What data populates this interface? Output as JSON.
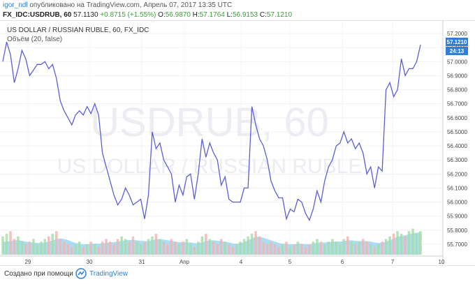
{
  "header": {
    "user": "igor_ndl",
    "published": "опубликовано на TradingView.com, Апрель 07, 2017 13:35 UTC",
    "symbol": "FX_IDC:USDRUB, 60",
    "last": "57.1130",
    "change": "+0.8715 (+1.55%)",
    "o_label": "O:",
    "o": "56.9870",
    "h_label": "H:",
    "h": "57.1764",
    "l_label": "L:",
    "l": "56.9153",
    "c_label": "C:",
    "c": "57.1210"
  },
  "legend": {
    "title": "US DOLLAR / RUSSIAN RUBLE, 60, FX_IDC",
    "volume": "Объём (20, false)"
  },
  "watermark": {
    "line1": "USDRUB, 60",
    "line2": "US DOLLAR / RUSSIAN RUBLE"
  },
  "price_tag": {
    "value": "57.1210",
    "timer": "24:13"
  },
  "footer": {
    "created": "Создано при помощи",
    "brand": "TradingView"
  },
  "colors": {
    "line": "#5b5fd6",
    "accent": "#2f7fd6",
    "up": "#3a9e3a",
    "vol_area": "#8fd3ef",
    "vol_green": "#a6dca6",
    "vol_red": "#f2b3b3"
  },
  "chart_data": {
    "type": "line",
    "x_ticks": [
      "29",
      "30",
      "31",
      "Апр",
      "4",
      "5",
      "6",
      "7",
      "10"
    ],
    "y_ticks": [
      "57.2000",
      "57.1000",
      "57.0000",
      "56.9000",
      "56.8000",
      "56.7000",
      "56.6000",
      "56.5000",
      "56.4000",
      "56.3000",
      "56.2000",
      "56.1000",
      "56.0000",
      "55.9000",
      "55.8000",
      "55.7000"
    ],
    "ylim": [
      55.65,
      57.25
    ],
    "grid": true,
    "series": [
      {
        "values": [
          57.0,
          57.14,
          57.05,
          56.85,
          56.95,
          57.08,
          57.02,
          56.9,
          56.94,
          56.98,
          56.98,
          57.0,
          56.95,
          56.98,
          56.88,
          56.72,
          56.65,
          56.6,
          56.55,
          56.62,
          56.65,
          56.62,
          56.68,
          56.63,
          56.7,
          56.62,
          56.35,
          56.25,
          56.15,
          56.05,
          55.98,
          56.02,
          56.1,
          56.05,
          55.98,
          56.0,
          56.02,
          55.88,
          56.05,
          56.5,
          56.38,
          56.42,
          56.3,
          56.25,
          56.2,
          56.0,
          56.12,
          56.05,
          56.18,
          56.2,
          56.02,
          56.2,
          56.45,
          56.32,
          56.42,
          56.35,
          56.3,
          56.12,
          56.18,
          56.02,
          56.0,
          56.0,
          56.0,
          56.1,
          56.1,
          56.68,
          56.55,
          56.45,
          56.4,
          56.3,
          56.15,
          56.08,
          56.03,
          56.03,
          55.88,
          55.95,
          55.93,
          56.02,
          56.0,
          55.92,
          55.87,
          55.95,
          56.08,
          56.0,
          56.15,
          56.25,
          56.3,
          56.4,
          56.42,
          56.5,
          56.42,
          56.45,
          56.38,
          56.42,
          56.35,
          56.2,
          56.25,
          56.1,
          56.25,
          56.22,
          56.8,
          56.85,
          56.75,
          56.8,
          57.02,
          56.9,
          56.95,
          56.95,
          57.0,
          57.12
        ]
      }
    ],
    "volume": {
      "series_name": "Объём (20, false)",
      "ylim": [
        0,
        1.6
      ],
      "values": [
        0.7,
        0.8,
        0.9,
        0.6,
        0.7,
        0.5,
        0.4,
        0.5,
        0.6,
        0.4,
        0.5,
        0.6,
        0.7,
        0.8,
        0.9,
        0.6,
        0.5,
        0.4,
        0.3,
        0.4,
        0.5,
        0.3,
        0.4,
        0.5,
        0.4,
        0.3,
        0.5,
        0.6,
        0.5,
        0.4,
        0.6,
        0.7,
        0.6,
        0.5,
        0.7,
        0.5,
        0.4,
        0.5,
        0.6,
        0.7,
        0.8,
        0.6,
        0.5,
        0.4,
        0.6,
        0.5,
        0.4,
        0.5,
        0.6,
        0.4,
        0.3,
        0.5,
        0.7,
        0.8,
        0.6,
        0.5,
        0.4,
        0.6,
        0.5,
        0.4,
        0.3,
        0.4,
        0.5,
        0.6,
        0.7,
        0.8,
        0.9,
        0.7,
        0.5,
        0.4,
        0.5,
        0.4,
        0.3,
        0.4,
        0.5,
        0.3,
        0.4,
        0.5,
        0.4,
        0.3,
        0.4,
        0.5,
        0.6,
        0.5,
        0.4,
        0.5,
        0.6,
        0.5,
        0.4,
        0.6,
        0.7,
        0.5,
        0.4,
        0.5,
        0.6,
        0.5,
        0.4,
        0.3,
        0.4,
        0.5,
        0.6,
        0.7,
        0.8,
        0.9,
        0.8,
        0.7,
        0.9,
        1.0,
        0.8,
        0.9
      ],
      "avg": [
        0.5,
        0.5,
        0.52,
        0.55,
        0.55,
        0.53,
        0.5,
        0.48,
        0.46,
        0.45,
        0.45,
        0.46,
        0.5,
        0.55,
        0.6,
        0.62,
        0.6,
        0.56,
        0.5,
        0.45,
        0.42,
        0.4,
        0.4,
        0.42,
        0.43,
        0.42,
        0.43,
        0.45,
        0.47,
        0.48,
        0.5,
        0.53,
        0.55,
        0.56,
        0.56,
        0.55,
        0.53,
        0.52,
        0.52,
        0.55,
        0.6,
        0.6,
        0.58,
        0.55,
        0.53,
        0.5,
        0.48,
        0.47,
        0.48,
        0.47,
        0.44,
        0.44,
        0.47,
        0.52,
        0.55,
        0.55,
        0.53,
        0.52,
        0.5,
        0.47,
        0.43,
        0.42,
        0.44,
        0.48,
        0.55,
        0.62,
        0.68,
        0.68,
        0.65,
        0.6,
        0.55,
        0.5,
        0.45,
        0.42,
        0.42,
        0.4,
        0.4,
        0.42,
        0.42,
        0.4,
        0.4,
        0.42,
        0.45,
        0.47,
        0.47,
        0.48,
        0.5,
        0.5,
        0.5,
        0.52,
        0.55,
        0.55,
        0.53,
        0.52,
        0.53,
        0.52,
        0.5,
        0.47,
        0.45,
        0.46,
        0.5,
        0.55,
        0.62,
        0.68,
        0.72,
        0.74,
        0.78,
        0.82,
        0.84,
        0.86
      ]
    }
  }
}
